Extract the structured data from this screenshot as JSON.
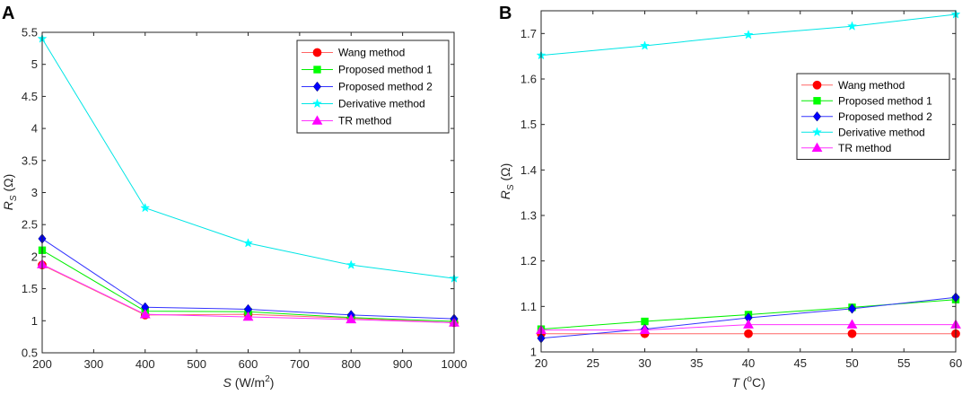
{
  "chart_data": [
    {
      "panel": "A",
      "type": "line",
      "xlabel": "S (W/m2)",
      "xlabel_parts": {
        "var": "S",
        "unit_before": " (W/m",
        "sup": "2",
        "unit_after": ")"
      },
      "ylabel": "RS (Ω)",
      "ylabel_parts": {
        "var": "R",
        "sub": "S",
        "unit": " (Ω)"
      },
      "xlim": [
        200,
        1000
      ],
      "ylim": [
        0.5,
        5.5
      ],
      "xticks": [
        200,
        300,
        400,
        500,
        600,
        700,
        800,
        900,
        1000
      ],
      "yticks": [
        0.5,
        1,
        1.5,
        2,
        2.5,
        3,
        3.5,
        4,
        4.5,
        5,
        5.5
      ],
      "ytick_labels": [
        "0.5",
        "1",
        "1.5",
        "2",
        "2.5",
        "3",
        "3.5",
        "4",
        "4.5",
        "5",
        "5.5"
      ],
      "legend_position": "top-right",
      "x": [
        200,
        400,
        600,
        800,
        1000
      ],
      "series": [
        {
          "name": "Wang method",
          "color": "#ff0000",
          "line_color": "#ff6666",
          "marker": "circle",
          "values": [
            1.87,
            1.09,
            1.1,
            1.04,
            0.97
          ]
        },
        {
          "name": "Proposed method 1",
          "color": "#00ff00",
          "line_color": "#00ee00",
          "marker": "square",
          "values": [
            2.1,
            1.15,
            1.14,
            1.05,
            0.99
          ]
        },
        {
          "name": "Proposed method 2",
          "color": "#0000ff",
          "line_color": "#3333ff",
          "marker": "diamond",
          "values": [
            2.28,
            1.21,
            1.18,
            1.09,
            1.03
          ]
        },
        {
          "name": "Derivative method",
          "color": "#00ffff",
          "line_color": "#00e5e5",
          "marker": "star",
          "values": [
            5.4,
            2.76,
            2.21,
            1.87,
            1.66
          ]
        },
        {
          "name": "TR method",
          "color": "#ff00ff",
          "line_color": "#ff33ff",
          "marker": "triangle",
          "values": [
            1.88,
            1.1,
            1.06,
            1.02,
            0.97
          ]
        }
      ]
    },
    {
      "panel": "B",
      "type": "line",
      "xlabel": "T (oC)",
      "xlabel_parts": {
        "var": "T",
        "unit_before": " (",
        "sup": "o",
        "unit_after": "C)"
      },
      "ylabel": "RS (Ω)",
      "ylabel_parts": {
        "var": "R",
        "sub": "S",
        "unit": " (Ω)"
      },
      "xlim": [
        20,
        60
      ],
      "ylim": [
        1.0,
        1.75
      ],
      "xticks": [
        20,
        25,
        30,
        35,
        40,
        45,
        50,
        55,
        60
      ],
      "yticks": [
        1.0,
        1.1,
        1.2,
        1.3,
        1.4,
        1.5,
        1.6,
        1.7
      ],
      "ytick_labels": [
        "1",
        "1.1",
        "1.2",
        "1.3",
        "1.4",
        "1.5",
        "1.6",
        "1.7"
      ],
      "legend_position": "center-right",
      "x": [
        20,
        30,
        40,
        50,
        60
      ],
      "series": [
        {
          "name": "Wang method",
          "color": "#ff0000",
          "line_color": "#ff6666",
          "marker": "circle",
          "values": [
            1.04,
            1.04,
            1.04,
            1.04,
            1.04
          ]
        },
        {
          "name": "Proposed method 1",
          "color": "#00ff00",
          "line_color": "#00ee00",
          "marker": "square",
          "values": [
            1.05,
            1.067,
            1.082,
            1.098,
            1.115
          ]
        },
        {
          "name": "Proposed method 2",
          "color": "#0000ff",
          "line_color": "#3333ff",
          "marker": "diamond",
          "values": [
            1.03,
            1.05,
            1.075,
            1.095,
            1.12
          ]
        },
        {
          "name": "Derivative method",
          "color": "#00ffff",
          "line_color": "#00e5e5",
          "marker": "star",
          "values": [
            1.652,
            1.673,
            1.697,
            1.716,
            1.742
          ]
        },
        {
          "name": "TR method",
          "color": "#ff00ff",
          "line_color": "#ff33ff",
          "marker": "triangle",
          "values": [
            1.048,
            1.048,
            1.06,
            1.06,
            1.06
          ]
        }
      ]
    }
  ]
}
